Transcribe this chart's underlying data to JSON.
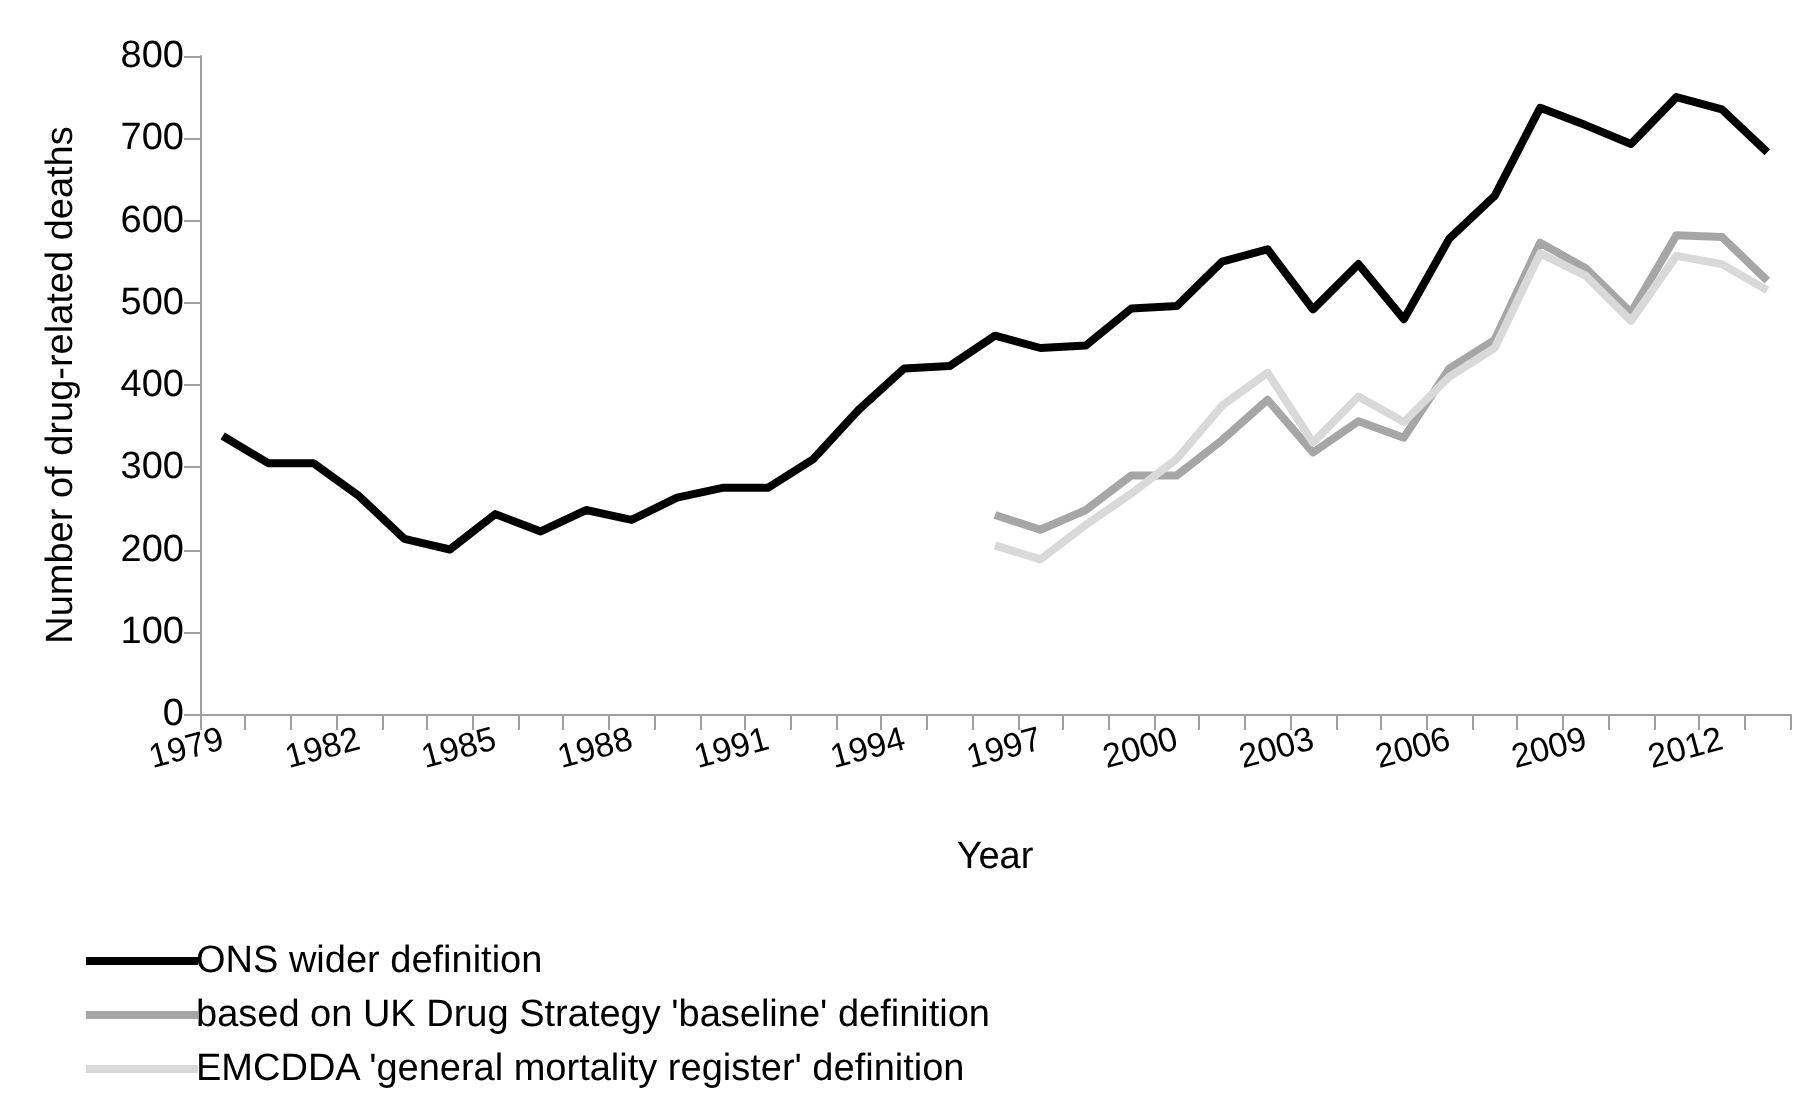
{
  "chart_data": {
    "type": "line",
    "xlabel": "Year",
    "ylabel": "Number of drug-related deaths",
    "categories": [
      "1979",
      null,
      null,
      "1982",
      null,
      null,
      "1985",
      null,
      null,
      "1988",
      null,
      null,
      "1991",
      null,
      null,
      "1994",
      null,
      null,
      "1997",
      null,
      null,
      "2000",
      null,
      null,
      "2003",
      null,
      null,
      "2006",
      null,
      null,
      "2009",
      null,
      null,
      "2012",
      null
    ],
    "series": [
      {
        "name": "ONS wider definition",
        "color": "#000000",
        "values": [
          338,
          305,
          305,
          265,
          213,
          200,
          243,
          222,
          248,
          236,
          263,
          275,
          275,
          310,
          370,
          420,
          423,
          460,
          445,
          448,
          493,
          496,
          550,
          565,
          492,
          547,
          480,
          578,
          630,
          737,
          716,
          693,
          750,
          735,
          683
        ]
      },
      {
        "name": "based on UK Drug Strategy 'baseline' definition",
        "color": "#a6a6a6",
        "values": [
          null,
          null,
          null,
          null,
          null,
          null,
          null,
          null,
          null,
          null,
          null,
          null,
          null,
          null,
          null,
          null,
          null,
          242,
          224,
          248,
          290,
          290,
          333,
          382,
          318,
          356,
          336,
          420,
          455,
          573,
          542,
          488,
          582,
          580,
          527
        ]
      },
      {
        "name": "EMCDDA 'general mortality register' definition",
        "color": "#d9d9d9",
        "values": [
          null,
          null,
          null,
          null,
          null,
          null,
          null,
          null,
          null,
          null,
          null,
          null,
          null,
          null,
          null,
          null,
          null,
          205,
          188,
          230,
          268,
          310,
          375,
          415,
          330,
          386,
          355,
          410,
          445,
          560,
          533,
          478,
          557,
          547,
          515
        ]
      }
    ],
    "ylim": [
      0,
      800
    ],
    "yticks": [
      0,
      100,
      200,
      300,
      400,
      500,
      600,
      700,
      800
    ],
    "grid": false,
    "legend": "bottom left",
    "marker": "none",
    "line_style": "solid"
  }
}
